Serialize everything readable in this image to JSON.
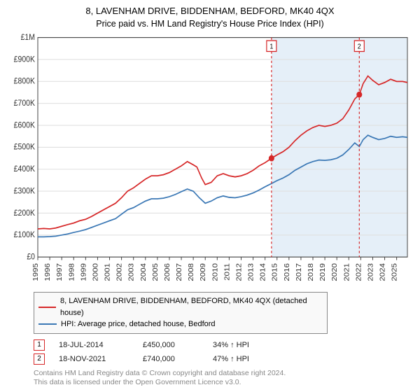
{
  "title": "8, LAVENHAM DRIVE, BIDDENHAM, BEDFORD, MK40 4QX",
  "subtitle": "Price paid vs. HM Land Registry's House Price Index (HPI)",
  "chart": {
    "type": "line",
    "background_color": "#ffffff",
    "grid_color": "#e0e0e0",
    "axis_color": "#444444",
    "shade_color": "#6ea8d8",
    "shade_opacity": 0.18,
    "x": {
      "min": 1995,
      "max": 2025.9,
      "ticks": [
        1995,
        1996,
        1997,
        1998,
        1999,
        2000,
        2001,
        2002,
        2003,
        2004,
        2005,
        2006,
        2007,
        2008,
        2009,
        2010,
        2011,
        2012,
        2013,
        2014,
        2015,
        2016,
        2017,
        2018,
        2019,
        2020,
        2021,
        2022,
        2023,
        2024,
        2025
      ],
      "tick_label_fontsize": 10.5,
      "tick_label_rotation_deg": -90
    },
    "y": {
      "min": 0,
      "max": 1000000,
      "ticks": [
        0,
        100000,
        200000,
        300000,
        400000,
        500000,
        600000,
        700000,
        800000,
        900000,
        1000000
      ],
      "tick_labels": [
        "£0",
        "£100K",
        "£200K",
        "£300K",
        "£400K",
        "£500K",
        "£600K",
        "£700K",
        "£800K",
        "£900K",
        "£1M"
      ],
      "tick_label_fontsize": 10.5
    },
    "series": [
      {
        "name": "property",
        "label": "8, LAVENHAM DRIVE, BIDDENHAM, BEDFORD, MK40 4QX (detached house)",
        "color": "#d62728",
        "line_width": 1.6,
        "data": [
          [
            1995.0,
            128000
          ],
          [
            1995.5,
            130000
          ],
          [
            1996.0,
            128000
          ],
          [
            1996.5,
            132000
          ],
          [
            1997.0,
            140000
          ],
          [
            1997.5,
            148000
          ],
          [
            1998.0,
            155000
          ],
          [
            1998.5,
            165000
          ],
          [
            1999.0,
            172000
          ],
          [
            1999.5,
            185000
          ],
          [
            2000.0,
            200000
          ],
          [
            2000.5,
            215000
          ],
          [
            2001.0,
            230000
          ],
          [
            2001.5,
            245000
          ],
          [
            2002.0,
            270000
          ],
          [
            2002.5,
            300000
          ],
          [
            2003.0,
            315000
          ],
          [
            2003.5,
            335000
          ],
          [
            2004.0,
            355000
          ],
          [
            2004.5,
            370000
          ],
          [
            2005.0,
            370000
          ],
          [
            2005.5,
            375000
          ],
          [
            2006.0,
            385000
          ],
          [
            2006.5,
            400000
          ],
          [
            2007.0,
            415000
          ],
          [
            2007.5,
            435000
          ],
          [
            2008.0,
            420000
          ],
          [
            2008.3,
            410000
          ],
          [
            2008.7,
            360000
          ],
          [
            2009.0,
            330000
          ],
          [
            2009.5,
            340000
          ],
          [
            2010.0,
            370000
          ],
          [
            2010.5,
            380000
          ],
          [
            2011.0,
            370000
          ],
          [
            2011.5,
            365000
          ],
          [
            2012.0,
            370000
          ],
          [
            2012.5,
            380000
          ],
          [
            2013.0,
            395000
          ],
          [
            2013.5,
            415000
          ],
          [
            2014.0,
            430000
          ],
          [
            2014.54,
            450000
          ],
          [
            2015.0,
            465000
          ],
          [
            2015.5,
            480000
          ],
          [
            2016.0,
            500000
          ],
          [
            2016.5,
            530000
          ],
          [
            2017.0,
            555000
          ],
          [
            2017.5,
            575000
          ],
          [
            2018.0,
            590000
          ],
          [
            2018.5,
            600000
          ],
          [
            2019.0,
            595000
          ],
          [
            2019.5,
            600000
          ],
          [
            2020.0,
            610000
          ],
          [
            2020.5,
            630000
          ],
          [
            2021.0,
            670000
          ],
          [
            2021.5,
            720000
          ],
          [
            2021.88,
            740000
          ],
          [
            2022.2,
            790000
          ],
          [
            2022.6,
            825000
          ],
          [
            2023.0,
            805000
          ],
          [
            2023.5,
            785000
          ],
          [
            2024.0,
            795000
          ],
          [
            2024.5,
            810000
          ],
          [
            2025.0,
            800000
          ],
          [
            2025.5,
            800000
          ],
          [
            2025.9,
            795000
          ]
        ]
      },
      {
        "name": "hpi",
        "label": "HPI: Average price, detached house, Bedford",
        "color": "#3b78b5",
        "line_width": 1.4,
        "data": [
          [
            1995.0,
            92000
          ],
          [
            1995.5,
            92000
          ],
          [
            1996.0,
            93000
          ],
          [
            1996.5,
            95000
          ],
          [
            1997.0,
            100000
          ],
          [
            1997.5,
            105000
          ],
          [
            1998.0,
            112000
          ],
          [
            1998.5,
            118000
          ],
          [
            1999.0,
            125000
          ],
          [
            1999.5,
            135000
          ],
          [
            2000.0,
            145000
          ],
          [
            2000.5,
            155000
          ],
          [
            2001.0,
            165000
          ],
          [
            2001.5,
            175000
          ],
          [
            2002.0,
            195000
          ],
          [
            2002.5,
            215000
          ],
          [
            2003.0,
            225000
          ],
          [
            2003.5,
            240000
          ],
          [
            2004.0,
            255000
          ],
          [
            2004.5,
            265000
          ],
          [
            2005.0,
            265000
          ],
          [
            2005.5,
            268000
          ],
          [
            2006.0,
            275000
          ],
          [
            2006.5,
            285000
          ],
          [
            2007.0,
            298000
          ],
          [
            2007.5,
            310000
          ],
          [
            2008.0,
            300000
          ],
          [
            2008.5,
            270000
          ],
          [
            2009.0,
            245000
          ],
          [
            2009.5,
            255000
          ],
          [
            2010.0,
            270000
          ],
          [
            2010.5,
            278000
          ],
          [
            2011.0,
            272000
          ],
          [
            2011.5,
            270000
          ],
          [
            2012.0,
            275000
          ],
          [
            2012.5,
            282000
          ],
          [
            2013.0,
            292000
          ],
          [
            2013.5,
            305000
          ],
          [
            2014.0,
            320000
          ],
          [
            2014.54,
            335000
          ],
          [
            2015.0,
            348000
          ],
          [
            2015.5,
            360000
          ],
          [
            2016.0,
            375000
          ],
          [
            2016.5,
            395000
          ],
          [
            2017.0,
            410000
          ],
          [
            2017.5,
            425000
          ],
          [
            2018.0,
            435000
          ],
          [
            2018.5,
            442000
          ],
          [
            2019.0,
            440000
          ],
          [
            2019.5,
            443000
          ],
          [
            2020.0,
            450000
          ],
          [
            2020.5,
            465000
          ],
          [
            2021.0,
            490000
          ],
          [
            2021.5,
            520000
          ],
          [
            2021.88,
            503000
          ],
          [
            2022.2,
            535000
          ],
          [
            2022.6,
            555000
          ],
          [
            2023.0,
            545000
          ],
          [
            2023.5,
            535000
          ],
          [
            2024.0,
            540000
          ],
          [
            2024.5,
            550000
          ],
          [
            2025.0,
            545000
          ],
          [
            2025.5,
            548000
          ],
          [
            2025.9,
            545000
          ]
        ]
      }
    ],
    "sale_markers": [
      {
        "num": "1",
        "x": 2014.54,
        "y": 450000,
        "dash_color": "#d62728",
        "box_color": "#d62728",
        "point_color": "#d62728"
      },
      {
        "num": "2",
        "x": 2021.88,
        "y": 740000,
        "dash_color": "#d62728",
        "box_color": "#d62728",
        "point_color": "#d62728"
      }
    ],
    "shade_from_x": 2014.54
  },
  "legend": {
    "border_color": "#888888",
    "bg_color": "#f9f9f9",
    "fontsize": 11,
    "items": [
      {
        "color": "#d62728",
        "label": "8, LAVENHAM DRIVE, BIDDENHAM, BEDFORD, MK40 4QX (detached house)"
      },
      {
        "color": "#3b78b5",
        "label": "HPI: Average price, detached house, Bedford"
      }
    ]
  },
  "sales": [
    {
      "num": "1",
      "border_color": "#d62728",
      "date": "18-JUL-2014",
      "price": "£450,000",
      "pct": "34% ↑ HPI"
    },
    {
      "num": "2",
      "border_color": "#d62728",
      "date": "18-NOV-2021",
      "price": "£740,000",
      "pct": "47% ↑ HPI"
    }
  ],
  "footnote_line1": "Contains HM Land Registry data © Crown copyright and database right 2024.",
  "footnote_line2": "This data is licensed under the Open Government Licence v3.0."
}
